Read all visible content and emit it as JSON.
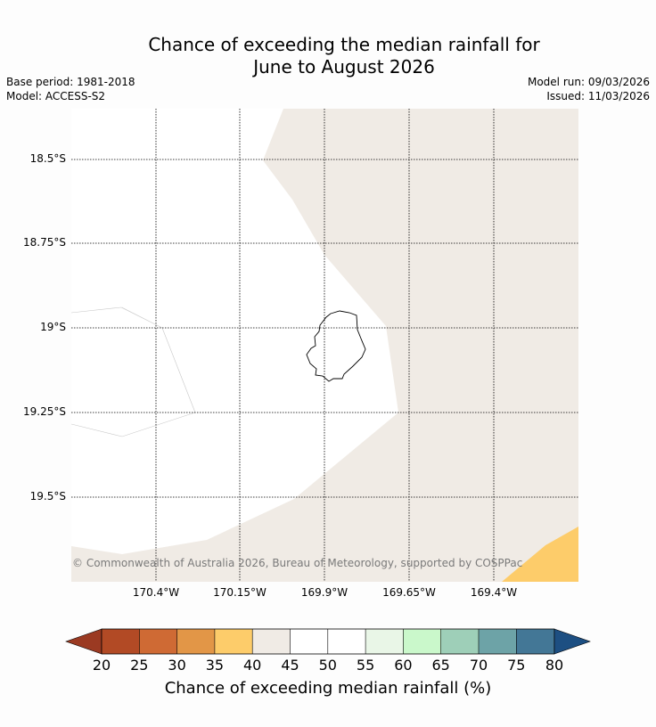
{
  "title_line1": "Chance of exceeding the median rainfall for",
  "title_line2": "June to August 2026",
  "base_period": "Base period: 1981-2018",
  "model": "Model: ACCESS-S2",
  "model_run": "Model run: 09/03/2026",
  "issued": "Issued: 11/03/2026",
  "lat_labels": [
    "18.5°S",
    "18.75°S",
    "19°S",
    "19.25°S",
    "19.5°S"
  ],
  "lon_labels": [
    "170.4°W",
    "170.15°W",
    "169.9°W",
    "169.65°W",
    "169.4°W"
  ],
  "copyright": "© Commonwealth of Australia 2026, Bureau of Meteorology, supported by COSPPac",
  "colorbar": {
    "title": "Chance of exceeding median rainfall (%)",
    "ticks": [
      "20",
      "25",
      "30",
      "35",
      "40",
      "45",
      "50",
      "55",
      "60",
      "65",
      "70",
      "75",
      "80"
    ],
    "colors": [
      "#b24a25",
      "#cf6a34",
      "#e29647",
      "#fdcc6a",
      "#f0ebe5",
      "#ffffff",
      "#ffffff",
      "#e9f6e7",
      "#caf8cb",
      "#9ecfb8",
      "#6da3a7",
      "#437796"
    ],
    "under_color": "#9b3a22",
    "over_color": "#1d4f82"
  },
  "map_colors": {
    "category_40_45": "#f0ebe5",
    "category_35_40": "#fdcc6a",
    "category_45_55": "#ffffff"
  }
}
